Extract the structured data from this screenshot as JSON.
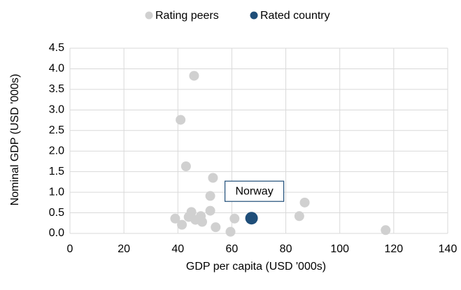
{
  "chart_data": {
    "type": "scatter",
    "x_label": "GDP per capita (USD '000s)",
    "y_label": "Nominal GDP (USD '000s)",
    "series": [
      {
        "name": "Rating peers",
        "color": "#d0d0d0",
        "x": [
          46,
          41,
          43,
          53,
          52,
          87,
          85,
          52,
          45,
          48.5,
          44,
          46.5,
          49,
          39,
          41.5,
          54,
          61,
          59.5,
          117
        ],
        "values": [
          3.83,
          2.76,
          1.63,
          1.35,
          0.91,
          0.75,
          0.42,
          0.55,
          0.52,
          0.42,
          0.4,
          0.33,
          0.28,
          0.36,
          0.21,
          0.15,
          0.36,
          0.04,
          0.08
        ]
      },
      {
        "name": "Rated country",
        "color": "#1f4e79",
        "x": [
          67.3
        ],
        "values": [
          0.37
        ]
      }
    ],
    "annotation": "Norway",
    "xlim": [
      0,
      140
    ],
    "xticks": [
      0,
      20,
      40,
      60,
      80,
      100,
      120,
      140
    ],
    "ylim": [
      0,
      4.5
    ],
    "yticks": [
      {
        "value": 0,
        "label": "0.0"
      },
      0.5,
      {
        "value": 1,
        "label": "1.0"
      },
      1.5,
      {
        "value": 2,
        "label": "2.0"
      },
      2.5,
      {
        "value": 3,
        "label": "3.0"
      },
      3.5,
      {
        "value": 4,
        "label": "4.0"
      },
      4.5
    ],
    "grid": true,
    "legend": "top"
  }
}
